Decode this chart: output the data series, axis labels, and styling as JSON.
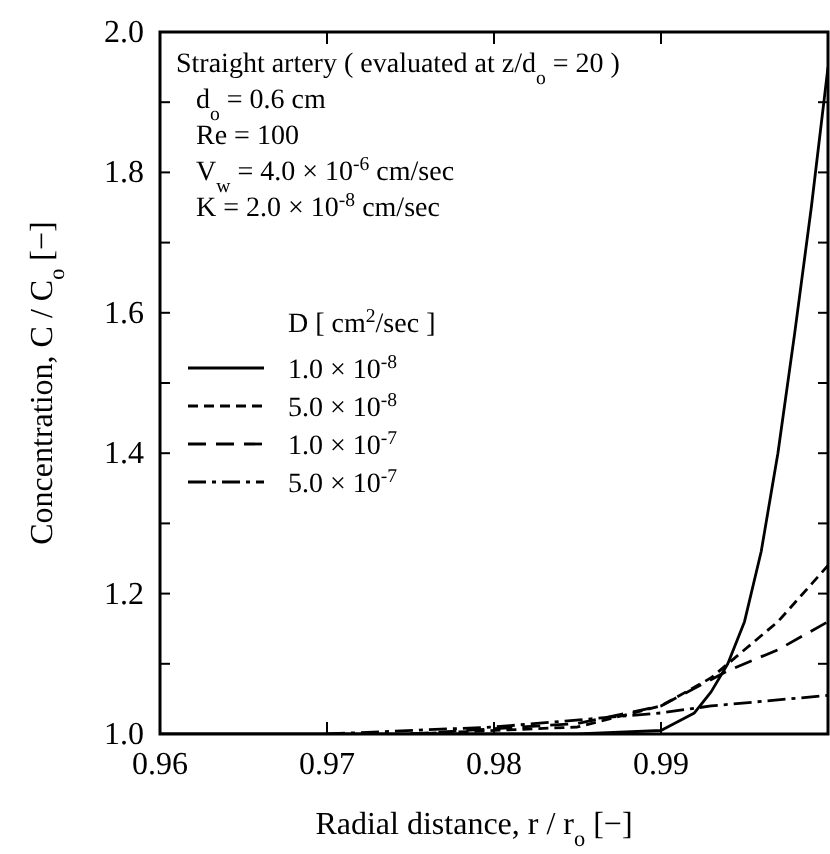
{
  "chart_data": {
    "type": "line",
    "xlabel": "Radial distance,  r / r$_{o}$ [−]",
    "ylabel": "Concentration,  C / C$_{o}$ [−]",
    "legend_title": "D  [ cm$^{2}$/sec ]",
    "legend": "left",
    "grid": false,
    "annotations": [
      "Straight artery  ( evaluated at   z/d$_{o}$ = 20 )",
      "d$_{o}$  = 0.6 cm",
      "Re  = 100",
      "V$_{w}$ = 4.0 × 10$^{-6}$ cm/sec",
      "K  = 2.0 × 10$^{-8}$ cm/sec"
    ],
    "xlim": [
      0.96,
      1.0
    ],
    "xticks": [
      0.96,
      0.97,
      0.98,
      0.99
    ],
    "ylim": [
      1.0,
      2.0
    ],
    "yticks": [
      {
        "value": 1,
        "label": "1.0"
      },
      {
        "value": 1.1,
        "label": null
      },
      {
        "value": 1.2,
        "label": "1.2"
      },
      {
        "value": 1.3,
        "label": null
      },
      {
        "value": 1.4,
        "label": "1.4"
      },
      {
        "value": 1.5,
        "label": null
      },
      {
        "value": 1.6,
        "label": "1.6"
      },
      {
        "value": 1.7,
        "label": null
      },
      {
        "value": 1.8,
        "label": "1.8"
      },
      {
        "value": 1.9,
        "label": null
      },
      {
        "value": 2,
        "label": "2.0"
      }
    ],
    "series": [
      {
        "name": "1.0 × 10$^{-8}$",
        "color": "#000000",
        "line_style": "solid",
        "x": [
          0.96,
          0.985,
          0.99,
          0.992,
          0.993,
          0.994,
          0.995,
          0.996,
          0.997,
          0.998,
          0.999,
          1.0
        ],
        "values": [
          1.0,
          1.0,
          1.005,
          1.03,
          1.06,
          1.1,
          1.16,
          1.26,
          1.4,
          1.57,
          1.75,
          1.95
        ]
      },
      {
        "name": "5.0 × 10$^{-8}$",
        "color": "#000000",
        "line_style": "dashed",
        "x": [
          0.975,
          0.985,
          0.99,
          0.993,
          0.995,
          0.997,
          1.0
        ],
        "values": [
          1.0,
          1.01,
          1.04,
          1.08,
          1.12,
          1.16,
          1.24
        ]
      },
      {
        "name": "1.0 × 10$^{-7}$",
        "color": "#000000",
        "line_style": "longdashed",
        "x": [
          0.975,
          0.985,
          0.99,
          0.994,
          0.997,
          1.0
        ],
        "values": [
          1.0,
          1.015,
          1.04,
          1.09,
          1.12,
          1.16
        ]
      },
      {
        "name": "5.0 × 10$^{-7}$",
        "color": "#000000",
        "line_style": "dashdot",
        "x": [
          0.97,
          0.98,
          0.99,
          0.993,
          1.0
        ],
        "values": [
          1.0,
          1.01,
          1.03,
          1.04,
          1.055
        ]
      }
    ]
  }
}
